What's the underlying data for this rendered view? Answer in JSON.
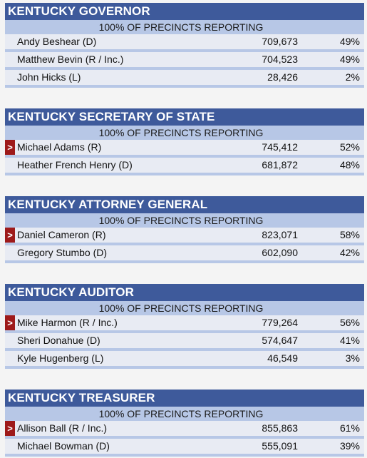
{
  "races": [
    {
      "title": "KENTUCKY GOVERNOR",
      "reporting": "100% OF PRECINCTS REPORTING",
      "candidates": [
        {
          "name": "Andy Beshear (D)",
          "votes": "709,673",
          "pct": "49%",
          "winner": false
        },
        {
          "name": "Matthew Bevin (R / Inc.)",
          "votes": "704,523",
          "pct": "49%",
          "winner": false
        },
        {
          "name": "John Hicks (L)",
          "votes": "28,426",
          "pct": "2%",
          "winner": false
        }
      ]
    },
    {
      "title": "KENTUCKY SECRETARY OF STATE",
      "reporting": "100% OF PRECINCTS REPORTING",
      "candidates": [
        {
          "name": "Michael Adams (R)",
          "votes": "745,412",
          "pct": "52%",
          "winner": true
        },
        {
          "name": "Heather French Henry (D)",
          "votes": "681,872",
          "pct": "48%",
          "winner": false
        }
      ]
    },
    {
      "title": "KENTUCKY ATTORNEY GENERAL",
      "reporting": "100% OF PRECINCTS REPORTING",
      "candidates": [
        {
          "name": "Daniel Cameron (R)",
          "votes": "823,071",
          "pct": "58%",
          "winner": true
        },
        {
          "name": "Gregory Stumbo (D)",
          "votes": "602,090",
          "pct": "42%",
          "winner": false
        }
      ]
    },
    {
      "title": "KENTUCKY AUDITOR",
      "reporting": "100% OF PRECINCTS REPORTING",
      "candidates": [
        {
          "name": "Mike Harmon (R / Inc.)",
          "votes": "779,264",
          "pct": "56%",
          "winner": true
        },
        {
          "name": "Sheri Donahue (D)",
          "votes": "574,647",
          "pct": "41%",
          "winner": false
        },
        {
          "name": "Kyle Hugenberg (L)",
          "votes": "46,549",
          "pct": "3%",
          "winner": false
        }
      ]
    },
    {
      "title": "KENTUCKY TREASURER",
      "reporting": "100% OF PRECINCTS REPORTING",
      "candidates": [
        {
          "name": "Allison Ball (R / Inc.)",
          "votes": "855,863",
          "pct": "61%",
          "winner": true
        },
        {
          "name": "Michael Bowman (D)",
          "votes": "555,091",
          "pct": "39%",
          "winner": false
        }
      ]
    }
  ],
  "winner_marker": ">",
  "colors": {
    "header_bg": "#3e5a9b",
    "reporting_bg": "#b7c7e6",
    "row_bg": "#e8ebf3",
    "winner_marker_bg": "#9e1a1a"
  }
}
